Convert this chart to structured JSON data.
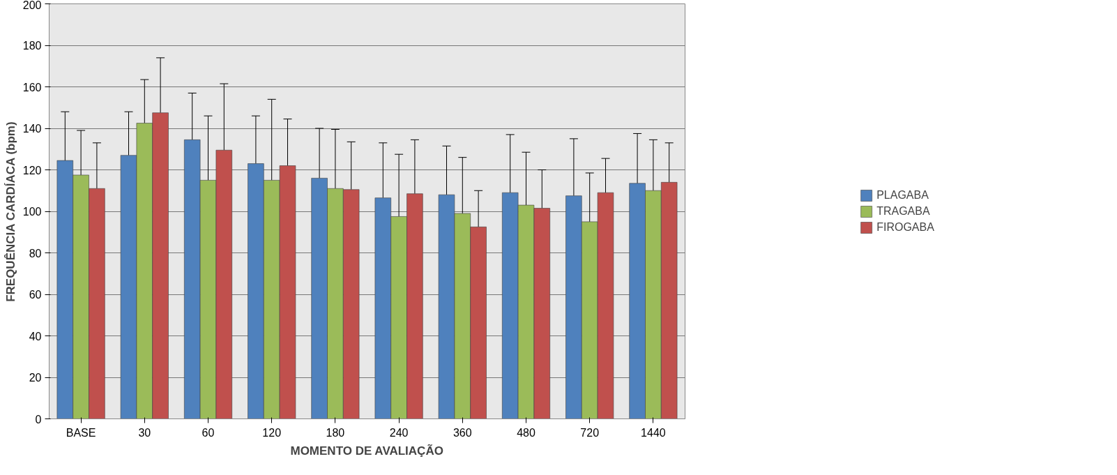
{
  "chart_data": {
    "type": "bar",
    "xlabel": "MOMENTO DE AVALIAÇÃO",
    "ylabel": "FREQUÊNCIA CARDÍACA (bpm)",
    "categories": [
      "BASE",
      "30",
      "60",
      "120",
      "180",
      "240",
      "360",
      "480",
      "720",
      "1440"
    ],
    "series": [
      {
        "name": "PLAGABA",
        "color": "#4f81bd",
        "values": [
          124.5,
          127,
          134.5,
          123,
          116,
          106.5,
          108,
          109,
          107.5,
          113.5
        ],
        "errors": [
          [
            124.5,
            148
          ],
          [
            127,
            148
          ],
          [
            134.5,
            157
          ],
          [
            123,
            146
          ],
          [
            116,
            140
          ],
          [
            106.5,
            133
          ],
          [
            108,
            131.5
          ],
          [
            109,
            137
          ],
          [
            107.5,
            135
          ],
          [
            113.5,
            137.5
          ]
        ]
      },
      {
        "name": "TRAGABA",
        "color": "#9bbb59",
        "values": [
          117.5,
          142.5,
          115,
          115,
          111,
          97.5,
          99,
          103,
          95,
          110
        ],
        "errors": [
          [
            117.5,
            139
          ],
          [
            142.5,
            163.5
          ],
          [
            115,
            146
          ],
          [
            115,
            154
          ],
          [
            111,
            139.5
          ],
          [
            97.5,
            127.5
          ],
          [
            99,
            126
          ],
          [
            103,
            128.5
          ],
          [
            95,
            118.5
          ],
          [
            110,
            134.5
          ]
        ]
      },
      {
        "name": "FIROGABA",
        "color": "#c0504d",
        "values": [
          111,
          147.5,
          129.5,
          122,
          110.5,
          108.5,
          92.5,
          101.5,
          109,
          114
        ],
        "errors": [
          [
            111,
            133
          ],
          [
            147.5,
            174
          ],
          [
            129.5,
            161.5
          ],
          [
            122,
            144.5
          ],
          [
            110.5,
            133.5
          ],
          [
            108.5,
            134.5
          ],
          [
            92.5,
            110
          ],
          [
            101.5,
            120
          ],
          [
            109,
            125.5
          ],
          [
            114,
            133
          ]
        ]
      }
    ],
    "ylim": [
      0,
      200
    ],
    "yticks": [
      0,
      20,
      40,
      60,
      80,
      100,
      120,
      140,
      160,
      180,
      200
    ],
    "grid": "y",
    "legend": "right"
  }
}
